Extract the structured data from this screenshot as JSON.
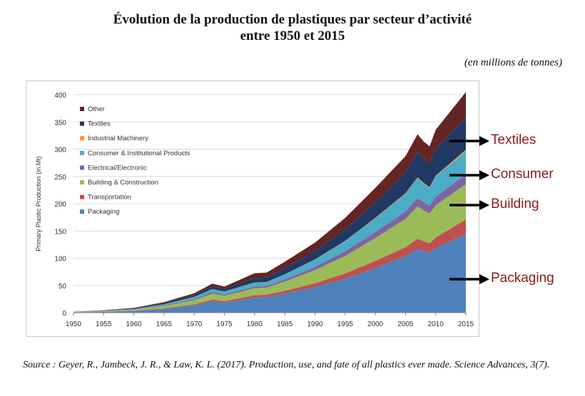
{
  "title_line1": "Évolution de la production de plastiques par secteur d’activité",
  "title_line2": "entre 1950 et 2015",
  "unit_note": "(en millions de tonnes)",
  "source": "Source : Geyer, R., Jambeck, J. R., & Law, K. L. (2017). Production, use, and fate of all plastics ever made. Science Advances, 3(7).",
  "annotations": [
    {
      "label": "Textiles",
      "color": "#8b1a1a"
    },
    {
      "label": "Consumer",
      "color": "#8b1a1a"
    },
    {
      "label": "Building",
      "color": "#8b1a1a"
    },
    {
      "label": "Packaging",
      "color": "#8b1a1a"
    }
  ],
  "chart_data": {
    "type": "area",
    "stacked": true,
    "ylabel": "Primary Plastic Production (in Mt)",
    "xlabel": "",
    "xlim": [
      1950,
      2015
    ],
    "ylim": [
      0,
      400
    ],
    "xticks": [
      1950,
      1955,
      1960,
      1965,
      1970,
      1975,
      1980,
      1985,
      1990,
      1995,
      2000,
      2005,
      2010,
      2015
    ],
    "yticks": [
      0,
      50,
      100,
      150,
      200,
      250,
      300,
      350,
      400
    ],
    "legend_position": "top-left",
    "x": [
      1950,
      1955,
      1960,
      1965,
      1970,
      1973,
      1975,
      1980,
      1982,
      1985,
      1990,
      1995,
      2000,
      2005,
      2007,
      2008,
      2009,
      2010,
      2015
    ],
    "series": [
      {
        "name": "Packaging",
        "color": "#4f81bd",
        "values": [
          0.6,
          1.5,
          3,
          7,
          13,
          21,
          18,
          28,
          29,
          35,
          47,
          62,
          82,
          104,
          117,
          113,
          110,
          119,
          144
        ]
      },
      {
        "name": "Transportation",
        "color": "#c0504d",
        "values": [
          0.1,
          0.2,
          0.4,
          1,
          2,
          3,
          3,
          4,
          4,
          5,
          7,
          10,
          13,
          16,
          19,
          18,
          17,
          19,
          27
        ]
      },
      {
        "name": "Building & Construction",
        "color": "#9bbb59",
        "values": [
          0.4,
          0.9,
          1.8,
          4,
          8,
          11,
          10,
          13,
          13,
          17,
          24,
          32,
          42,
          52,
          59,
          57,
          55,
          59,
          65
        ]
      },
      {
        "name": "Electrical/Electronic",
        "color": "#8064a2",
        "values": [
          0.1,
          0.3,
          0.6,
          1.2,
          2,
          3,
          2.5,
          3,
          3,
          4,
          6,
          9,
          11,
          14,
          16,
          15,
          14,
          16,
          18
        ]
      },
      {
        "name": "Consumer & Institutional Products",
        "color": "#4bacc6",
        "values": [
          0.2,
          0.5,
          1,
          2,
          4,
          5,
          5,
          7,
          7,
          9,
          13,
          18,
          25,
          32,
          36,
          34,
          33,
          37,
          42
        ]
      },
      {
        "name": "Industrial Machinery",
        "color": "#f79646",
        "values": [
          0.01,
          0.02,
          0.05,
          0.1,
          0.2,
          0.3,
          0.3,
          0.4,
          0.4,
          0.5,
          0.6,
          0.8,
          1,
          1.2,
          1.4,
          1.3,
          1.3,
          1.5,
          3
        ]
      },
      {
        "name": "Textiles",
        "color": "#1f3864",
        "values": [
          0.2,
          0.5,
          1,
          2,
          3.5,
          5,
          5,
          8,
          8,
          11,
          15,
          21,
          28,
          38,
          47,
          45,
          44,
          49,
          59
        ]
      },
      {
        "name": "Other",
        "color": "#632523",
        "values": [
          0.2,
          0.5,
          1,
          2,
          3,
          5,
          4,
          9,
          9,
          12,
          16,
          21,
          27,
          30,
          32,
          31,
          31,
          35,
          47
        ]
      }
    ]
  }
}
